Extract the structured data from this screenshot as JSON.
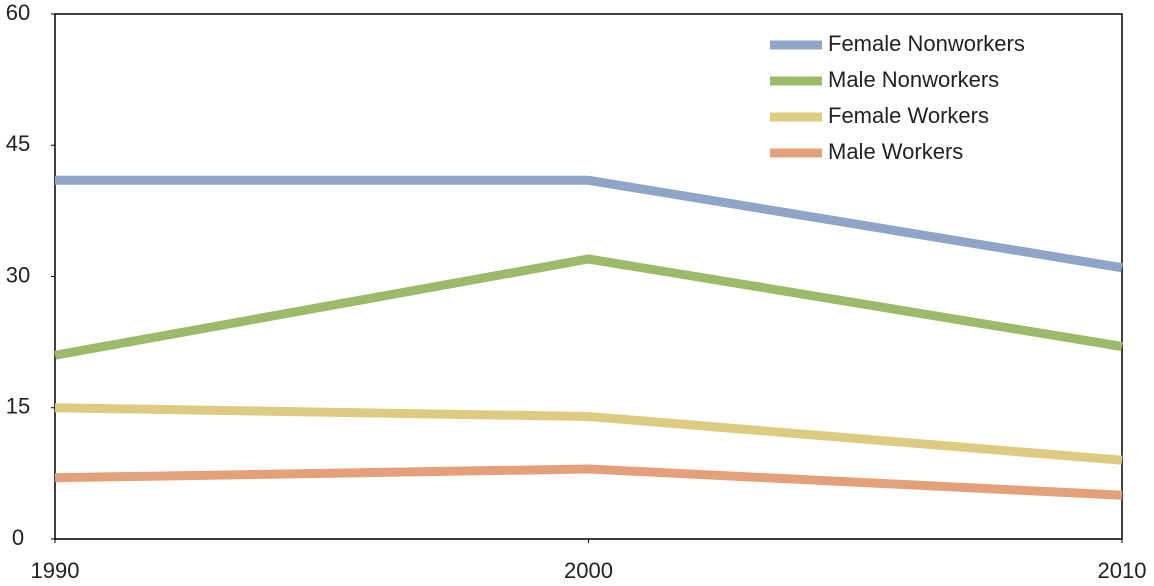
{
  "chart_data": {
    "type": "line",
    "x": [
      1990,
      2000,
      2010
    ],
    "series": [
      {
        "name": "Female Nonworkers",
        "color": "#8ea5c8",
        "values": [
          41,
          41,
          31
        ]
      },
      {
        "name": "Male Nonworkers",
        "color": "#9bbb6a",
        "values": [
          21,
          32,
          22
        ]
      },
      {
        "name": "Female Workers",
        "color": "#dccb80",
        "values": [
          15,
          14,
          9
        ]
      },
      {
        "name": "Male Workers",
        "color": "#e3a07a",
        "values": [
          7,
          8,
          5
        ]
      }
    ],
    "xlim": [
      1990,
      2010
    ],
    "xticks": [
      1990,
      2000,
      2010
    ],
    "ylim": [
      0,
      60
    ],
    "yticks": [
      0,
      15,
      30,
      45,
      60
    ],
    "legend": "upper right"
  }
}
